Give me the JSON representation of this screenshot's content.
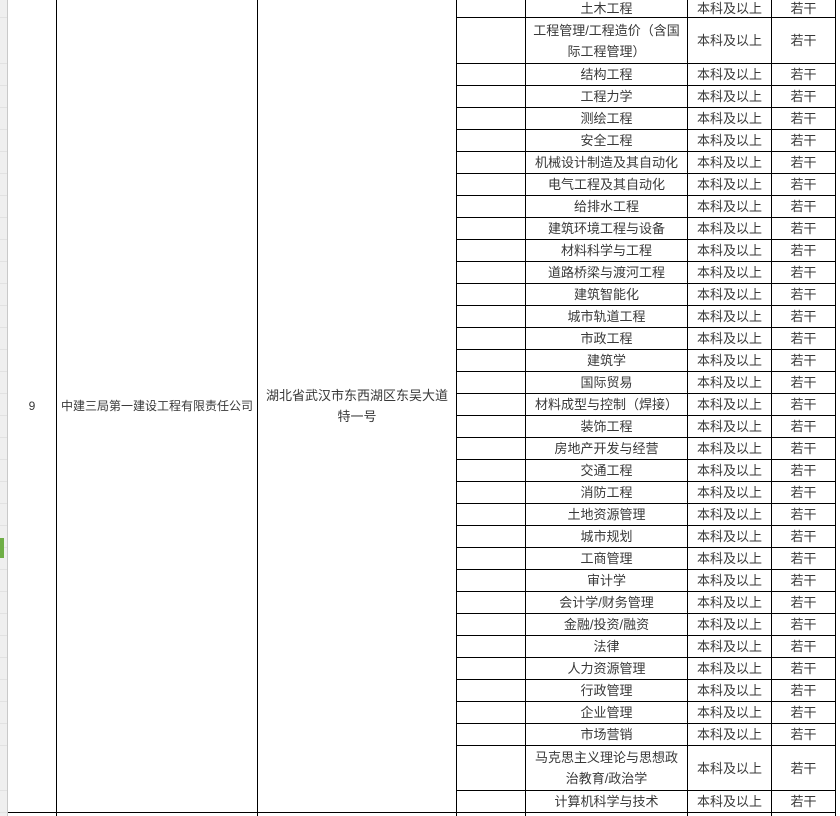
{
  "sheet": {
    "row_header_strip": {
      "selected_indicator_color": "#6fae46"
    },
    "record": {
      "row_number": "9",
      "company": "中建三局第一建设工程有限责任公司",
      "address": "湖北省武汉市东西湖区东吴大道特一号"
    },
    "rows": [
      {
        "major": "土木工程",
        "degree": "本科及以上",
        "count": "若干"
      },
      {
        "major": "工程管理/工程造价（含国际工程管理）",
        "degree": "本科及以上",
        "count": "若干"
      },
      {
        "major": "结构工程",
        "degree": "本科及以上",
        "count": "若干"
      },
      {
        "major": "工程力学",
        "degree": "本科及以上",
        "count": "若干"
      },
      {
        "major": "测绘工程",
        "degree": "本科及以上",
        "count": "若干"
      },
      {
        "major": "安全工程",
        "degree": "本科及以上",
        "count": "若干"
      },
      {
        "major": "机械设计制造及其自动化",
        "degree": "本科及以上",
        "count": "若干"
      },
      {
        "major": "电气工程及其自动化",
        "degree": "本科及以上",
        "count": "若干"
      },
      {
        "major": "给排水工程",
        "degree": "本科及以上",
        "count": "若干"
      },
      {
        "major": "建筑环境工程与设备",
        "degree": "本科及以上",
        "count": "若干"
      },
      {
        "major": "材料科学与工程",
        "degree": "本科及以上",
        "count": "若干"
      },
      {
        "major": "道路桥梁与渡河工程",
        "degree": "本科及以上",
        "count": "若干"
      },
      {
        "major": "建筑智能化",
        "degree": "本科及以上",
        "count": "若干"
      },
      {
        "major": "城市轨道工程",
        "degree": "本科及以上",
        "count": "若干"
      },
      {
        "major": "市政工程",
        "degree": "本科及以上",
        "count": "若干"
      },
      {
        "major": "建筑学",
        "degree": "本科及以上",
        "count": "若干"
      },
      {
        "major": "国际贸易",
        "degree": "本科及以上",
        "count": "若干"
      },
      {
        "major": "材料成型与控制（焊接）",
        "degree": "本科及以上",
        "count": "若干"
      },
      {
        "major": "装饰工程",
        "degree": "本科及以上",
        "count": "若干"
      },
      {
        "major": "房地产开发与经营",
        "degree": "本科及以上",
        "count": "若干"
      },
      {
        "major": "交通工程",
        "degree": "本科及以上",
        "count": "若干"
      },
      {
        "major": "消防工程",
        "degree": "本科及以上",
        "count": "若干"
      },
      {
        "major": "土地资源管理",
        "degree": "本科及以上",
        "count": "若干"
      },
      {
        "major": "城市规划",
        "degree": "本科及以上",
        "count": "若干"
      },
      {
        "major": "工商管理",
        "degree": "本科及以上",
        "count": "若干"
      },
      {
        "major": "审计学",
        "degree": "本科及以上",
        "count": "若干"
      },
      {
        "major": "会计学/财务管理",
        "degree": "本科及以上",
        "count": "若干"
      },
      {
        "major": "金融/投资/融资",
        "degree": "本科及以上",
        "count": "若干"
      },
      {
        "major": "法律",
        "degree": "本科及以上",
        "count": "若干"
      },
      {
        "major": "人力资源管理",
        "degree": "本科及以上",
        "count": "若干"
      },
      {
        "major": "行政管理",
        "degree": "本科及以上",
        "count": "若干"
      },
      {
        "major": "企业管理",
        "degree": "本科及以上",
        "count": "若干"
      },
      {
        "major": "市场营销",
        "degree": "本科及以上",
        "count": "若干"
      },
      {
        "major": "马克思主义理论与思想政治教育/政治学",
        "degree": "本科及以上",
        "count": "若干"
      },
      {
        "major": "计算机科学与技术",
        "degree": "本科及以上",
        "count": "若干"
      }
    ]
  }
}
